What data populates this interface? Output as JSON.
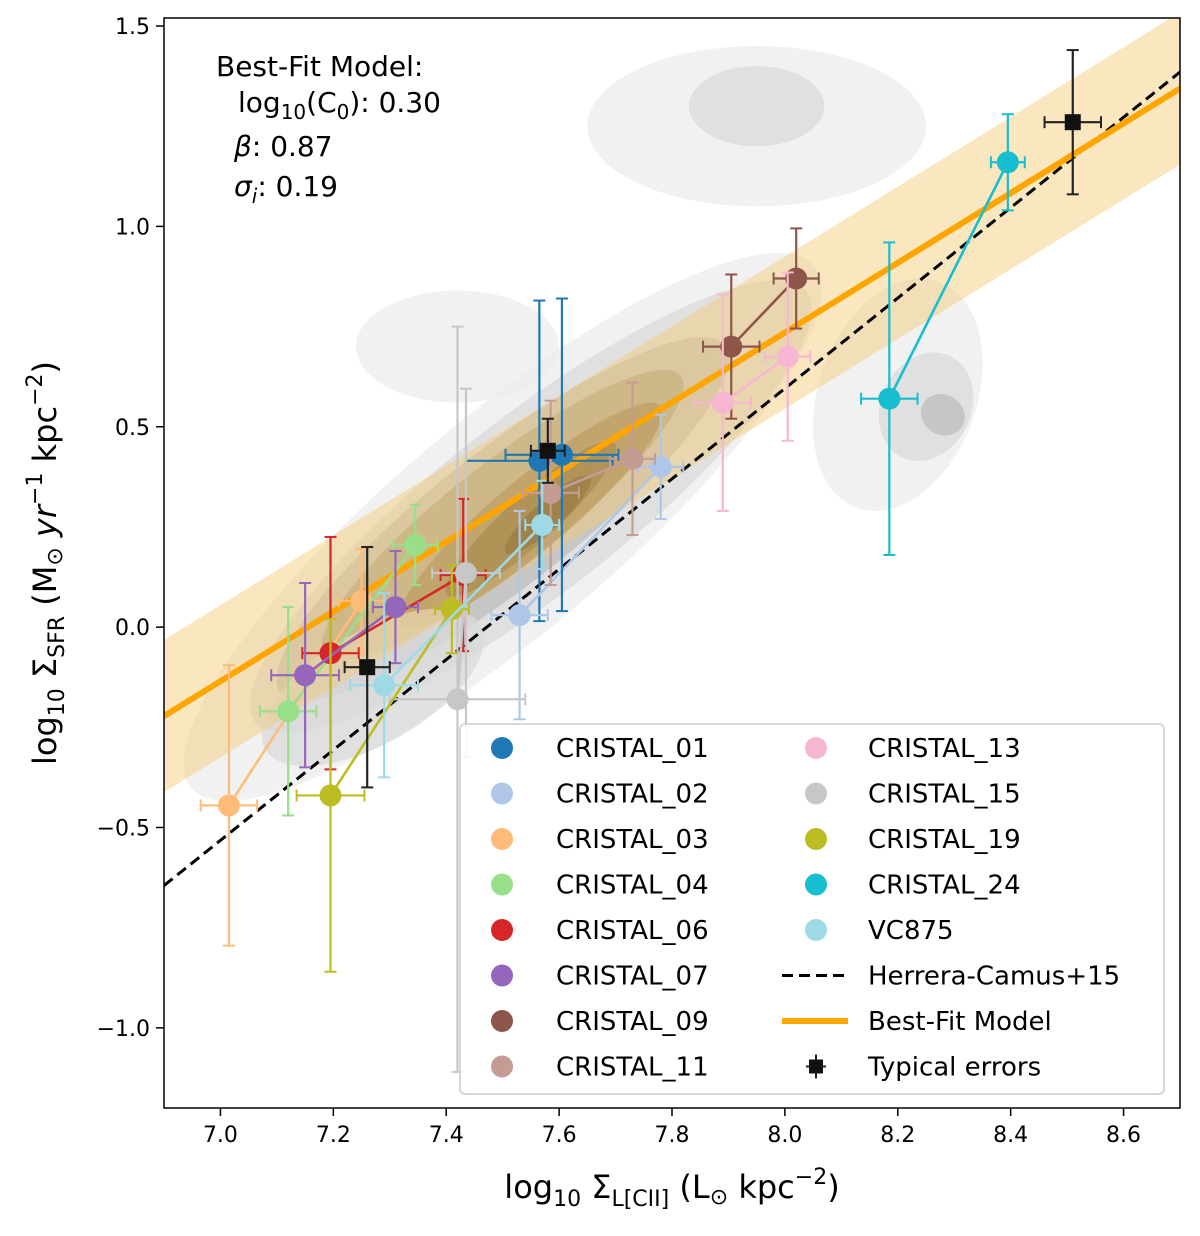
{
  "chart_data": {
    "type": "scatter",
    "title": "",
    "xlabel": {
      "prefix": "log",
      "prefix_sub": "10",
      "sym": " Σ",
      "sym_sub": "L[CII]",
      "unit_open": " (L",
      "unit_sun": "⊙",
      "unit_mid": " kpc",
      "unit_sup": "−2",
      "unit_close": ")"
    },
    "ylabel": {
      "prefix": "log",
      "prefix_sub": "10",
      "sym": " Σ",
      "sym_sub": "SFR",
      "unit_open": " (M",
      "unit_sun": "⊙",
      "unit_yr": "yr",
      "unit_yr_sup": "−1",
      "unit_mid": " kpc",
      "unit_sup": "−2",
      "unit_close": ")"
    },
    "xlim": [
      6.9,
      8.7
    ],
    "ylim": [
      -1.2,
      1.52
    ],
    "xticks": [
      7.0,
      7.2,
      7.4,
      7.6,
      7.8,
      8.0,
      8.2,
      8.4,
      8.6
    ],
    "xtick_labels": [
      "7.0",
      "7.2",
      "7.4",
      "7.6",
      "7.8",
      "8.0",
      "8.2",
      "8.4",
      "8.6"
    ],
    "yticks": [
      -1.0,
      -0.5,
      0.0,
      0.5,
      1.0,
      1.5
    ],
    "ytick_labels": [
      "−1.0",
      "−0.5",
      "0.0",
      "0.5",
      "1.0",
      "1.5"
    ],
    "annotation": {
      "header": "Best-Fit Model:",
      "c0_prefix": "log",
      "c0_sub": "10",
      "c0_mid": "(C",
      "c0_sub2": "0",
      "c0_value": "): 0.30",
      "beta_sym": "β",
      "beta_value": ": 0.87",
      "sigma_sym": "σ",
      "sigma_sub": "i",
      "sigma_value": ": 0.19"
    },
    "best_fit": {
      "name": "Best-Fit Model",
      "log_c0": 0.3,
      "beta": 0.87,
      "sigma_i": 0.19,
      "pivot_x": 7.5,
      "color": "#ffa500",
      "band_color": "#f7c972"
    },
    "herrera_camus": {
      "name": "Herrera-Camus+15",
      "x": [
        6.9,
        8.7
      ],
      "y": [
        -0.645,
        1.385
      ],
      "color": "#000000"
    },
    "typical_errors": {
      "name": "Typical errors",
      "points": [
        {
          "x": 8.51,
          "y": 1.26,
          "xerr": 0.05,
          "yerr": 0.18
        },
        {
          "x": 7.58,
          "y": 0.44,
          "xerr": 0.03,
          "yerr": 0.08
        },
        {
          "x": 7.26,
          "y": -0.1,
          "xerr": 0.04,
          "yerr": 0.3
        }
      ]
    },
    "density_contours": [
      {
        "cx": 7.5,
        "cy": 0.25,
        "rx": 0.72,
        "ry": 0.27,
        "angle": -40,
        "level": 1
      },
      {
        "cx": 7.55,
        "cy": 0.3,
        "rx": 0.62,
        "ry": 0.22,
        "angle": -38,
        "level": 2
      },
      {
        "cx": 7.5,
        "cy": 0.27,
        "rx": 0.5,
        "ry": 0.17,
        "angle": -38,
        "level": 3
      },
      {
        "cx": 7.5,
        "cy": 0.28,
        "rx": 0.4,
        "ry": 0.13,
        "angle": -38,
        "level": 4
      },
      {
        "cx": 7.55,
        "cy": 0.28,
        "rx": 0.3,
        "ry": 0.09,
        "angle": -40,
        "level": 5
      },
      {
        "cx": 7.55,
        "cy": 0.27,
        "rx": 0.2,
        "ry": 0.06,
        "angle": -42,
        "level": 6
      },
      {
        "cx": 7.58,
        "cy": 0.28,
        "rx": 0.1,
        "ry": 0.035,
        "angle": -42,
        "level": 7
      },
      {
        "cx": 8.2,
        "cy": 0.58,
        "rx": 0.14,
        "ry": 0.3,
        "angle": 20,
        "level": 1
      },
      {
        "cx": 8.25,
        "cy": 0.55,
        "rx": 0.08,
        "ry": 0.14,
        "angle": 25,
        "level": 2
      },
      {
        "cx": 8.28,
        "cy": 0.53,
        "rx": 0.04,
        "ry": 0.05,
        "angle": 30,
        "level": 3
      },
      {
        "cx": 7.95,
        "cy": 1.25,
        "rx": 0.3,
        "ry": 0.2,
        "angle": 0,
        "level": 1
      },
      {
        "cx": 7.95,
        "cy": 1.3,
        "rx": 0.12,
        "ry": 0.1,
        "angle": 0,
        "level": 2
      },
      {
        "cx": 7.42,
        "cy": 0.7,
        "rx": 0.18,
        "ry": 0.14,
        "angle": 0,
        "level": 1
      },
      {
        "cx": 7.27,
        "cy": -0.15,
        "rx": 0.22,
        "ry": 0.14,
        "angle": -30,
        "level": 2
      }
    ],
    "series": [
      {
        "name": "CRISTAL_01",
        "color": "#1f77b4",
        "points": [
          {
            "x": 7.565,
            "y": 0.415,
            "xerr": 0.13,
            "yerr": 0.4
          }
        ]
      },
      {
        "name": "CRISTAL_02",
        "color": "#aec7e8",
        "points": [
          {
            "x": 7.53,
            "y": 0.03,
            "xerr": 0.05,
            "yerr": 0.26
          },
          {
            "x": 7.78,
            "y": 0.4,
            "xerr": 0.04,
            "yerr": 0.13
          }
        ]
      },
      {
        "name": "CRISTAL_03",
        "color": "#ffbb78",
        "points": [
          {
            "x": 7.015,
            "y": -0.445,
            "xerr": 0.05,
            "yerr": 0.35
          },
          {
            "x": 7.25,
            "y": 0.065,
            "xerr": 0.04,
            "yerr": 0.13
          }
        ]
      },
      {
        "name": "CRISTAL_04",
        "color": "#98df8a",
        "points": [
          {
            "x": 7.12,
            "y": -0.21,
            "xerr": 0.05,
            "yerr": 0.26
          },
          {
            "x": 7.345,
            "y": 0.205,
            "xerr": 0.04,
            "yerr": 0.1
          }
        ]
      },
      {
        "name": "CRISTAL_06",
        "color": "#d62728",
        "points": [
          {
            "x": 7.195,
            "y": -0.065,
            "xerr": 0.05,
            "yerr": 0.29
          },
          {
            "x": 7.43,
            "y": 0.13,
            "xerr": 0.04,
            "yerr": 0.19
          }
        ]
      },
      {
        "name": "CRISTAL_07",
        "color": "#9467bd",
        "points": [
          {
            "x": 7.15,
            "y": -0.12,
            "xerr": 0.06,
            "yerr": 0.23
          },
          {
            "x": 7.31,
            "y": 0.05,
            "xerr": 0.04,
            "yerr": 0.14
          }
        ]
      },
      {
        "name": "CRISTAL_09",
        "color": "#8c564b",
        "points": [
          {
            "x": 7.905,
            "y": 0.7,
            "xerr": 0.05,
            "yerr": 0.18
          },
          {
            "x": 8.02,
            "y": 0.87,
            "xerr": 0.04,
            "yerr": 0.125
          }
        ]
      },
      {
        "name": "CRISTAL_11",
        "color": "#c49c94",
        "points": [
          {
            "x": 7.585,
            "y": 0.335,
            "xerr": 0.05,
            "yerr": 0.23
          },
          {
            "x": 7.73,
            "y": 0.42,
            "xerr": 0.04,
            "yerr": 0.19
          }
        ]
      },
      {
        "name": "CRISTAL_13",
        "color": "#f7b6d2",
        "points": [
          {
            "x": 7.89,
            "y": 0.56,
            "xerr": 0.05,
            "yerr": 0.27
          },
          {
            "x": 8.005,
            "y": 0.675,
            "xerr": 0.04,
            "yerr": 0.21
          }
        ]
      },
      {
        "name": "CRISTAL_15",
        "color": "#c7c7c7",
        "points": [
          {
            "x": 7.42,
            "y": -0.18,
            "xerr": 0.12,
            "yerr": 0.93
          },
          {
            "x": 7.435,
            "y": 0.135,
            "xerr": 0.06,
            "yerr": 0.46
          }
        ]
      },
      {
        "name": "CRISTAL_19",
        "color": "#bcbd22",
        "points": [
          {
            "x": 7.195,
            "y": -0.42,
            "xerr": 0.06,
            "yerr": 0.44
          },
          {
            "x": 7.41,
            "y": 0.045,
            "xerr": 0.03,
            "yerr": 0.11
          }
        ]
      },
      {
        "name": "CRISTAL_24",
        "color": "#17becf",
        "points": [
          {
            "x": 8.185,
            "y": 0.57,
            "xerr": 0.05,
            "yerr": 0.39
          },
          {
            "x": 8.395,
            "y": 1.16,
            "xerr": 0.03,
            "yerr": 0.12
          }
        ]
      },
      {
        "name": "VC875",
        "color": "#9edae5",
        "points": [
          {
            "x": 7.29,
            "y": -0.145,
            "xerr": 0.06,
            "yerr": 0.23
          },
          {
            "x": 7.57,
            "y": 0.255,
            "xerr": 0.03,
            "yerr": 0.11
          }
        ]
      }
    ],
    "legend": {
      "placement": "lower-right",
      "entries": [
        "CRISTAL_01",
        "CRISTAL_02",
        "CRISTAL_03",
        "CRISTAL_04",
        "CRISTAL_06",
        "CRISTAL_07",
        "CRISTAL_09",
        "CRISTAL_11",
        "CRISTAL_13",
        "CRISTAL_15",
        "CRISTAL_19",
        "CRISTAL_24",
        "VC875",
        "Herrera-Camus+15",
        "Best-Fit Model",
        "Typical errors"
      ]
    },
    "extra_point": {
      "name": "CRISTAL_01",
      "x": 7.605,
      "y": 0.43,
      "xerr": 0.1,
      "yerr": 0.39
    }
  }
}
